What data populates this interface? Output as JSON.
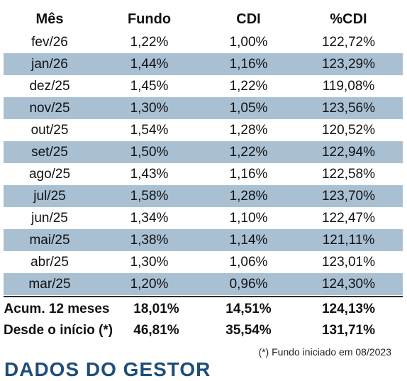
{
  "table": {
    "headers": [
      "Mês",
      "Fundo",
      "CDI",
      "%CDI"
    ],
    "rows": [
      [
        "fev/26",
        "1,22%",
        "1,00%",
        "122,72%"
      ],
      [
        "jan/26",
        "1,44%",
        "1,16%",
        "123,29%"
      ],
      [
        "dez/25",
        "1,45%",
        "1,22%",
        "119,08%"
      ],
      [
        "nov/25",
        "1,30%",
        "1,05%",
        "123,56%"
      ],
      [
        "out/25",
        "1,54%",
        "1,28%",
        "120,52%"
      ],
      [
        "set/25",
        "1,50%",
        "1,22%",
        "122,94%"
      ],
      [
        "ago/25",
        "1,43%",
        "1,16%",
        "122,58%"
      ],
      [
        "jul/25",
        "1,58%",
        "1,28%",
        "123,70%"
      ],
      [
        "jun/25",
        "1,34%",
        "1,10%",
        "122,47%"
      ],
      [
        "mai/25",
        "1,38%",
        "1,14%",
        "121,11%"
      ],
      [
        "abr/25",
        "1,30%",
        "1,06%",
        "123,01%"
      ],
      [
        "mar/25",
        "1,20%",
        "0,96%",
        "124,30%"
      ]
    ],
    "alt_row_color": "#a9c0d3"
  },
  "summary": [
    [
      "Acum. 12 meses",
      "18,01%",
      "14,51%",
      "124,13%"
    ],
    [
      "Desde o início (*)",
      "46,81%",
      "35,54%",
      "131,71%"
    ]
  ],
  "footnote": "(*) Fundo iniciado em 08/2023",
  "section_heading": "DADOS DO GESTOR",
  "colors": {
    "heading": "#1f4e79"
  }
}
